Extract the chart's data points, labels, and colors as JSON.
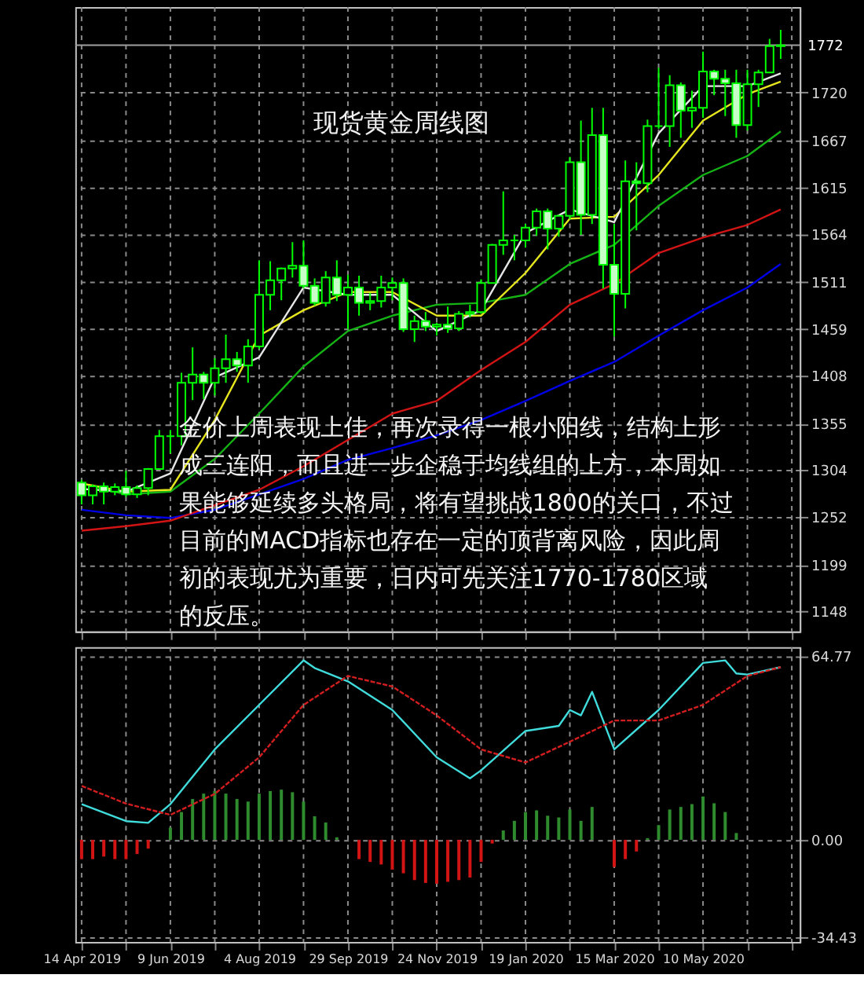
{
  "chart_data": [
    {
      "type": "candlestick",
      "title": "现货黄金周线图",
      "annotations": [
        "金价上周表现上佳，再次录得一根小阳线，结构上形成三连阳，而且进一步企稳于均线组的上方，本周如果能够延续多头格局，将有望挑战1800的关口，不过目前的MACD指标也存在一定的顶背离风险，因此周初的表现尤为重要，日内可先关注1770-1780区域的反压。"
      ],
      "x": [
        "2019-04-14",
        "2019-04-21",
        "2019-04-28",
        "2019-05-05",
        "2019-05-12",
        "2019-05-19",
        "2019-05-26",
        "2019-06-02",
        "2019-06-09",
        "2019-06-16",
        "2019-06-23",
        "2019-06-30",
        "2019-07-07",
        "2019-07-14",
        "2019-07-21",
        "2019-07-28",
        "2019-08-04",
        "2019-08-11",
        "2019-08-18",
        "2019-08-25",
        "2019-09-01",
        "2019-09-08",
        "2019-09-15",
        "2019-09-22",
        "2019-09-29",
        "2019-10-06",
        "2019-10-13",
        "2019-10-20",
        "2019-10-27",
        "2019-11-03",
        "2019-11-10",
        "2019-11-17",
        "2019-11-24",
        "2019-12-01",
        "2019-12-08",
        "2019-12-15",
        "2019-12-22",
        "2019-12-29",
        "2020-01-05",
        "2020-01-12",
        "2020-01-19",
        "2020-01-26",
        "2020-02-02",
        "2020-02-09",
        "2020-02-16",
        "2020-02-23",
        "2020-03-01",
        "2020-03-08",
        "2020-03-15",
        "2020-03-22",
        "2020-03-29",
        "2020-04-05",
        "2020-04-12",
        "2020-04-19",
        "2020-04-26",
        "2020-05-03",
        "2020-05-10",
        "2020-05-17",
        "2020-05-24",
        "2020-05-31",
        "2020-06-07",
        "2020-06-14",
        "2020-06-21",
        "2020-06-28"
      ],
      "ohlc": [
        [
          1290,
          1293,
          1266,
          1276
        ],
        [
          1276,
          1288,
          1266,
          1286
        ],
        [
          1286,
          1290,
          1266,
          1280
        ],
        [
          1280,
          1289,
          1276,
          1285
        ],
        [
          1285,
          1303,
          1274,
          1277
        ],
        [
          1277,
          1287,
          1273,
          1284
        ],
        [
          1284,
          1306,
          1276,
          1305
        ],
        [
          1305,
          1348,
          1305,
          1341
        ],
        [
          1341,
          1348,
          1322,
          1341
        ],
        [
          1341,
          1411,
          1331,
          1400
        ],
        [
          1400,
          1439,
          1381,
          1409
        ],
        [
          1409,
          1412,
          1382,
          1400
        ],
        [
          1400,
          1427,
          1386,
          1416
        ],
        [
          1416,
          1453,
          1400,
          1426
        ],
        [
          1426,
          1434,
          1412,
          1419
        ],
        [
          1419,
          1448,
          1400,
          1440
        ],
        [
          1440,
          1535,
          1437,
          1497
        ],
        [
          1497,
          1534,
          1480,
          1513
        ],
        [
          1513,
          1527,
          1491,
          1526
        ],
        [
          1526,
          1555,
          1516,
          1529
        ],
        [
          1529,
          1557,
          1504,
          1507
        ],
        [
          1507,
          1515,
          1485,
          1488
        ],
        [
          1488,
          1523,
          1484,
          1516
        ],
        [
          1516,
          1535,
          1490,
          1497
        ],
        [
          1497,
          1519,
          1459,
          1505
        ],
        [
          1505,
          1518,
          1474,
          1488
        ],
        [
          1488,
          1499,
          1480,
          1490
        ],
        [
          1490,
          1518,
          1483,
          1505
        ],
        [
          1505,
          1516,
          1491,
          1510
        ],
        [
          1510,
          1515,
          1456,
          1459
        ],
        [
          1459,
          1474,
          1445,
          1468
        ],
        [
          1468,
          1478,
          1457,
          1462
        ],
        [
          1462,
          1466,
          1452,
          1464
        ],
        [
          1464,
          1484,
          1455,
          1460
        ],
        [
          1460,
          1479,
          1457,
          1476
        ],
        [
          1476,
          1486,
          1472,
          1478
        ],
        [
          1478,
          1514,
          1476,
          1510
        ],
        [
          1510,
          1553,
          1510,
          1552
        ],
        [
          1552,
          1611,
          1541,
          1557
        ],
        [
          1557,
          1563,
          1535,
          1557
        ],
        [
          1557,
          1575,
          1549,
          1571
        ],
        [
          1571,
          1592,
          1562,
          1589
        ],
        [
          1589,
          1592,
          1547,
          1570
        ],
        [
          1570,
          1585,
          1561,
          1584
        ],
        [
          1584,
          1649,
          1580,
          1643
        ],
        [
          1643,
          1689,
          1563,
          1585
        ],
        [
          1585,
          1703,
          1575,
          1673
        ],
        [
          1673,
          1703,
          1504,
          1530
        ],
        [
          1530,
          1575,
          1451,
          1498
        ],
        [
          1498,
          1645,
          1482,
          1622
        ],
        [
          1622,
          1643,
          1568,
          1620
        ],
        [
          1620,
          1690,
          1610,
          1683
        ],
        [
          1683,
          1747,
          1680,
          1683
        ],
        [
          1683,
          1739,
          1660,
          1728
        ],
        [
          1728,
          1731,
          1670,
          1700
        ],
        [
          1700,
          1722,
          1681,
          1703
        ],
        [
          1703,
          1765,
          1692,
          1743
        ],
        [
          1743,
          1745,
          1717,
          1735
        ],
        [
          1735,
          1745,
          1694,
          1730
        ],
        [
          1730,
          1745,
          1670,
          1684
        ],
        [
          1684,
          1745,
          1678,
          1729
        ],
        [
          1729,
          1745,
          1704,
          1742
        ],
        [
          1742,
          1779,
          1742,
          1771
        ],
        [
          1771,
          1789,
          1757,
          1772
        ]
      ],
      "series": [
        {
          "type": "line",
          "color": "#0000e6",
          "line_style": "solid",
          "x": [
            "2019-04-14",
            "2019-05-12",
            "2019-06-09",
            "2019-07-07",
            "2019-08-04",
            "2019-09-01",
            "2019-09-29",
            "2019-10-27",
            "2019-11-24",
            "2019-12-22",
            "2020-01-19",
            "2020-02-16",
            "2020-03-15",
            "2020-04-12",
            "2020-05-10",
            "2020-06-07",
            "2020-06-28"
          ],
          "values": [
            1260,
            1254,
            1251,
            1260,
            1277,
            1294,
            1315,
            1328,
            1342,
            1359,
            1380,
            1402,
            1423,
            1452,
            1480,
            1505,
            1531
          ]
        },
        {
          "type": "line",
          "color": "#d21414",
          "line_style": "solid",
          "x": [
            "2019-04-14",
            "2019-05-12",
            "2019-06-09",
            "2019-07-07",
            "2019-08-04",
            "2019-09-01",
            "2019-09-29",
            "2019-10-27",
            "2019-11-24",
            "2019-12-22",
            "2020-01-19",
            "2020-02-16",
            "2020-03-15",
            "2020-04-12",
            "2020-05-10",
            "2020-06-07",
            "2020-06-28"
          ],
          "values": [
            1237,
            1242,
            1248,
            1265,
            1282,
            1308,
            1337,
            1366,
            1380,
            1414,
            1445,
            1486,
            1509,
            1543,
            1560,
            1574,
            1591
          ]
        },
        {
          "type": "line",
          "color": "#14b414",
          "line_style": "solid",
          "x": [
            "2019-04-14",
            "2019-05-12",
            "2019-06-09",
            "2019-07-07",
            "2019-08-04",
            "2019-09-01",
            "2019-09-29",
            "2019-10-27",
            "2019-11-24",
            "2019-12-22",
            "2020-01-19",
            "2020-02-16",
            "2020-03-15",
            "2020-04-12",
            "2020-05-10",
            "2020-06-07",
            "2020-06-28"
          ],
          "values": [
            1289,
            1277,
            1280,
            1316,
            1366,
            1418,
            1457,
            1474,
            1486,
            1488,
            1497,
            1531,
            1552,
            1595,
            1629,
            1650,
            1677
          ]
        },
        {
          "type": "line",
          "color": "#e6e61e",
          "line_style": "solid",
          "x": [
            "2019-04-14",
            "2019-05-12",
            "2019-06-09",
            "2019-07-07",
            "2019-08-04",
            "2019-09-01",
            "2019-09-29",
            "2019-10-27",
            "2019-11-24",
            "2019-12-22",
            "2020-01-19",
            "2020-02-16",
            "2020-03-15",
            "2020-04-12",
            "2020-05-10",
            "2020-06-07",
            "2020-06-28"
          ],
          "values": [
            1289,
            1280,
            1282,
            1359,
            1452,
            1480,
            1500,
            1500,
            1474,
            1474,
            1521,
            1581,
            1583,
            1629,
            1689,
            1718,
            1732
          ]
        },
        {
          "type": "line",
          "color": "#e6e6e6",
          "line_style": "solid",
          "x": [
            "2019-04-14",
            "2019-05-12",
            "2019-06-09",
            "2019-07-07",
            "2019-08-04",
            "2019-09-01",
            "2019-09-29",
            "2019-10-27",
            "2019-11-24",
            "2019-12-22",
            "2020-01-19",
            "2020-02-16",
            "2020-03-15",
            "2020-04-12",
            "2020-05-10",
            "2020-06-07",
            "2020-06-28"
          ],
          "values": [
            1283,
            1280,
            1300,
            1406,
            1428,
            1505,
            1497,
            1497,
            1457,
            1480,
            1565,
            1591,
            1577,
            1675,
            1727,
            1727,
            1741
          ]
        }
      ],
      "xlim": [
        "2019-04-10",
        "2020-07-10"
      ],
      "xticks": [
        {
          "value": "2019-04-14",
          "label": null
        },
        {
          "value": "2019-05-12",
          "label": null
        },
        {
          "value": "2019-06-09",
          "label": null
        },
        {
          "value": "2019-07-07",
          "label": null
        },
        {
          "value": "2019-08-04",
          "label": null
        },
        {
          "value": "2019-09-01",
          "label": null
        },
        {
          "value": "2019-09-29",
          "label": null
        },
        {
          "value": "2019-10-27",
          "label": null
        },
        {
          "value": "2019-11-24",
          "label": null
        },
        {
          "value": "2019-12-22",
          "label": null
        },
        {
          "value": "2020-01-19",
          "label": null
        },
        {
          "value": "2020-02-16",
          "label": null
        },
        {
          "value": "2020-03-15",
          "label": null
        },
        {
          "value": "2020-04-12",
          "label": null
        },
        {
          "value": "2020-05-10",
          "label": null
        },
        {
          "value": "2020-06-07",
          "label": null
        },
        {
          "value": "2020-07-05",
          "label": null
        }
      ],
      "ylim": [
        1126,
        1814
      ],
      "yticks": [
        1148,
        1199,
        1252,
        1304,
        1355,
        1408,
        1459,
        1511,
        1564,
        1615,
        1667,
        1720
      ],
      "ref_lines": [
        {
          "axis": "y",
          "value": 1772,
          "label": "1772",
          "color": "#a0a0a0"
        }
      ],
      "grid": true,
      "tick_labels": "y"
    },
    {
      "type": "line",
      "x": [
        "2019-04-14",
        "2019-04-21",
        "2019-04-28",
        "2019-05-05",
        "2019-05-12",
        "2019-05-19",
        "2019-05-26",
        "2019-06-02",
        "2019-06-09",
        "2019-06-16",
        "2019-06-23",
        "2019-06-30",
        "2019-07-07",
        "2019-07-14",
        "2019-07-21",
        "2019-07-28",
        "2019-08-04",
        "2019-08-11",
        "2019-08-18",
        "2019-08-25",
        "2019-09-01",
        "2019-09-08",
        "2019-09-15",
        "2019-09-22",
        "2019-09-29",
        "2019-10-06",
        "2019-10-13",
        "2019-10-20",
        "2019-10-27",
        "2019-11-03",
        "2019-11-10",
        "2019-11-17",
        "2019-11-24",
        "2019-12-01",
        "2019-12-08",
        "2019-12-15",
        "2019-12-22",
        "2019-12-29",
        "2020-01-05",
        "2020-01-12",
        "2020-01-19",
        "2020-01-26",
        "2020-02-02",
        "2020-02-09",
        "2020-02-16",
        "2020-02-23",
        "2020-03-01",
        "2020-03-08",
        "2020-03-15",
        "2020-03-22",
        "2020-03-29",
        "2020-04-05",
        "2020-04-12",
        "2020-04-19",
        "2020-04-26",
        "2020-05-03",
        "2020-05-10",
        "2020-05-17",
        "2020-05-24",
        "2020-05-31"
      ],
      "series": [
        {
          "type": "bar",
          "color": "#2e8b2e",
          "values": [
            null,
            null,
            null,
            null,
            null,
            null,
            null,
            null,
            4.3,
            9.8,
            14.4,
            16.3,
            17.2,
            16.3,
            14.4,
            13.5,
            16.3,
            17.2,
            17.7,
            16.8,
            13.5,
            8.3,
            6.1,
            0.9,
            null,
            null,
            null,
            null,
            null,
            null,
            null,
            null,
            null,
            null,
            null,
            null,
            null,
            null,
            3.3,
            6.7,
            9.8,
            10.4,
            8.5,
            7.9,
            10.7,
            6.7,
            11.6,
            null,
            null,
            null,
            null,
            0.6,
            5.2,
            10.7,
            11.6,
            12.6,
            15.3,
            12.9,
            9.8,
            2.4
          ]
        },
        {
          "type": "bar",
          "color": "#d21414",
          "values": [
            -6.8,
            -6.8,
            -5.9,
            -6.8,
            -6.8,
            -5.0,
            -3.1,
            null,
            null,
            null,
            null,
            null,
            null,
            null,
            null,
            null,
            null,
            null,
            null,
            null,
            null,
            null,
            null,
            null,
            null,
            -6.8,
            -7.8,
            -8.7,
            -10.5,
            -11.8,
            -14.2,
            -15.2,
            -15.5,
            -14.8,
            -14.2,
            -13.3,
            -7.8,
            -1.3,
            null,
            null,
            null,
            null,
            null,
            null,
            null,
            null,
            null,
            null,
            -9.6,
            -6.8,
            -4.1,
            null,
            null,
            null,
            null,
            null,
            null,
            null,
            null,
            null
          ]
        },
        {
          "type": "line",
          "color": "#d21e1e",
          "line_style": "dashed",
          "x": [
            "2019-04-14",
            "2019-05-12",
            "2019-06-09",
            "2019-07-07",
            "2019-08-04",
            "2019-09-01",
            "2019-09-29",
            "2019-10-27",
            "2019-11-24",
            "2019-12-22",
            "2020-01-19",
            "2020-02-16",
            "2020-03-15",
            "2020-04-12",
            "2020-05-10",
            "2020-06-07",
            "2020-06-28"
          ],
          "values": [
            19,
            12.8,
            8.8,
            16.2,
            29.1,
            47.6,
            57.8,
            54.1,
            43.9,
            31.9,
            27.3,
            34.6,
            42.1,
            42.1,
            47.6,
            57.8,
            60.9
          ]
        },
        {
          "type": "line",
          "color": "#40dcdc",
          "line_style": "solid",
          "x": [
            "2019-04-14",
            "2019-05-12",
            "2019-05-26",
            "2019-06-09",
            "2019-07-07",
            "2019-08-04",
            "2019-09-01",
            "2019-09-08",
            "2019-09-29",
            "2019-10-27",
            "2019-11-24",
            "2019-12-15",
            "2019-12-22",
            "2020-01-19",
            "2020-02-09",
            "2020-02-16",
            "2020-02-23",
            "2020-03-01",
            "2020-03-15",
            "2020-04-12",
            "2020-05-10",
            "2020-05-24",
            "2020-05-31",
            "2020-06-07",
            "2020-06-28"
          ],
          "values": [
            12.6,
            6.6,
            6,
            12.6,
            31.9,
            47.6,
            63.3,
            60.6,
            55.9,
            45.8,
            29.1,
            21.7,
            24.5,
            38.4,
            40.2,
            45.8,
            43.9,
            52.2,
            31.9,
            45.8,
            62.4,
            63.3,
            58.7,
            58.3,
            60.9
          ]
        }
      ],
      "xlim": [
        "2019-04-10",
        "2020-07-10"
      ],
      "xticks": [
        {
          "value": "2019-04-14",
          "label": "14 Apr 2019"
        },
        {
          "value": "2019-05-12",
          "label": null
        },
        {
          "value": "2019-06-09",
          "label": "9 Jun 2019"
        },
        {
          "value": "2019-07-07",
          "label": null
        },
        {
          "value": "2019-08-04",
          "label": "4 Aug 2019"
        },
        {
          "value": "2019-09-01",
          "label": null
        },
        {
          "value": "2019-09-29",
          "label": "29 Sep 2019"
        },
        {
          "value": "2019-10-27",
          "label": null
        },
        {
          "value": "2019-11-24",
          "label": "24 Nov 2019"
        },
        {
          "value": "2019-12-22",
          "label": null
        },
        {
          "value": "2020-01-19",
          "label": "19 Jan 2020"
        },
        {
          "value": "2020-02-16",
          "label": null
        },
        {
          "value": "2020-03-15",
          "label": "15 Mar 2020"
        },
        {
          "value": "2020-04-12",
          "label": null
        },
        {
          "value": "2020-05-10",
          "label": "10 May 2020"
        },
        {
          "value": "2020-06-07",
          "label": null
        },
        {
          "value": "2020-07-05",
          "label": null
        }
      ],
      "ylim": [
        -36,
        68
      ],
      "yticks": [
        -34.43,
        {
          "value": 0,
          "label": "0.00"
        },
        64.77
      ],
      "grid": true
    }
  ]
}
